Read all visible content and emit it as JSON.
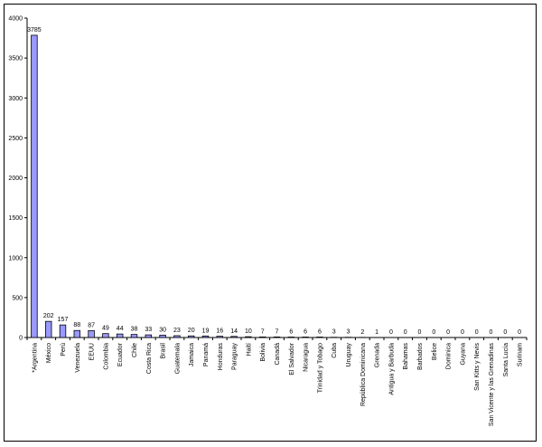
{
  "colors": {
    "bar_fill": "#9999ff",
    "bar_stroke": "#000000",
    "axis": "#000000",
    "background": "#ffffff"
  },
  "chart_data": {
    "type": "bar",
    "title": "",
    "xlabel": "",
    "ylabel": "",
    "ylim": [
      0,
      4000
    ],
    "yticks": [
      0,
      500,
      1000,
      1500,
      2000,
      2500,
      3000,
      3500,
      4000
    ],
    "grid": false,
    "legend": "none",
    "categories": [
      "*Argentina",
      "México",
      "Perú",
      "Venezuela",
      "EEUU",
      "Colombia",
      "Ecuador",
      "Chile",
      "Costa Rica",
      "Brasil",
      "Guatemala",
      "Jamaica",
      "Panamá",
      "Honduras",
      "Paraguay",
      "Haití",
      "Bolivia",
      "Canadá",
      "El Salvador",
      "Nicaragua",
      "Trinidad y Tobago",
      "Cuba",
      "Uruguay",
      "República Dominicana",
      "Grenada",
      "Antigua y Barbuda",
      "Bahamas",
      "Barbados",
      "Belice",
      "Dominica",
      "Guyana",
      "San Kitts y Nevis",
      "San Vicente y las Grenadinas",
      "Santa Lucía",
      "Surinam"
    ],
    "values": [
      3785,
      202,
      157,
      88,
      87,
      49,
      44,
      38,
      33,
      30,
      23,
      20,
      19,
      16,
      14,
      10,
      7,
      7,
      6,
      6,
      6,
      3,
      3,
      2,
      1,
      0,
      0,
      0,
      0,
      0,
      0,
      0,
      0,
      0,
      0
    ]
  }
}
